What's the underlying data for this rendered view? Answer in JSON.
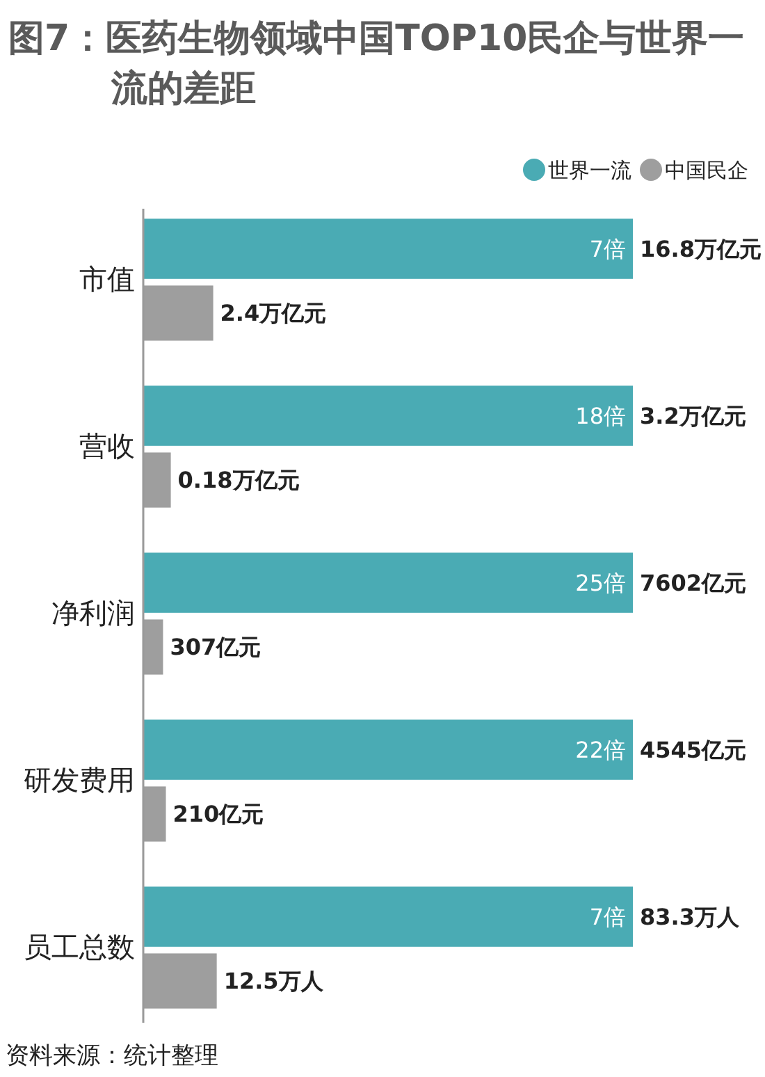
{
  "chart_data": [
    {
      "type": "bar",
      "orientation": "horizontal",
      "title": "图7：医药生物领域中国TOP10民企与世界一流的差距",
      "categories": [
        "市值"
      ],
      "legend": "top right",
      "annotations": [
        "7倍"
      ],
      "series": [
        {
          "name": "世界一流",
          "color": "#4aabb4",
          "values": [
            16.8
          ],
          "value_labels": [
            "16.8万亿元"
          ]
        },
        {
          "name": "中国民企",
          "color": "#9e9e9e",
          "values": [
            2.4
          ],
          "value_labels": [
            "2.4万亿元"
          ]
        }
      ]
    },
    {
      "type": "bar",
      "orientation": "horizontal",
      "categories": [
        "营收"
      ],
      "annotations": [
        "18倍"
      ],
      "series": [
        {
          "color": "#4aabb4",
          "values": [
            3.2
          ],
          "value_labels": [
            "3.2万亿元"
          ]
        },
        {
          "color": "#9e9e9e",
          "values": [
            0.18
          ],
          "value_labels": [
            "0.18万亿元"
          ]
        }
      ]
    },
    {
      "type": "bar",
      "orientation": "horizontal",
      "categories": [
        "净利润"
      ],
      "annotations": [
        "25倍"
      ],
      "series": [
        {
          "color": "#4aabb4",
          "values": [
            7602
          ],
          "value_labels": [
            "7602亿元"
          ]
        },
        {
          "color": "#9e9e9e",
          "values": [
            307
          ],
          "value_labels": [
            "307亿元"
          ]
        }
      ]
    },
    {
      "type": "bar",
      "orientation": "horizontal",
      "categories": [
        "研发费用"
      ],
      "annotations": [
        "22倍"
      ],
      "series": [
        {
          "color": "#4aabb4",
          "values": [
            4545
          ],
          "value_labels": [
            "4545亿元"
          ]
        },
        {
          "color": "#9e9e9e",
          "values": [
            210
          ],
          "value_labels": [
            "210亿元"
          ]
        }
      ]
    },
    {
      "type": "bar",
      "orientation": "horizontal",
      "categories": [
        "员工总数"
      ],
      "annotations": [
        "7倍",
        "资料来源：统计整理"
      ],
      "series": [
        {
          "color": "#4aabb4",
          "values": [
            83.3
          ],
          "value_labels": [
            "83.3万人"
          ]
        },
        {
          "color": "#9e9e9e",
          "values": [
            12.5
          ],
          "value_labels": [
            "12.5万人"
          ]
        }
      ]
    }
  ]
}
